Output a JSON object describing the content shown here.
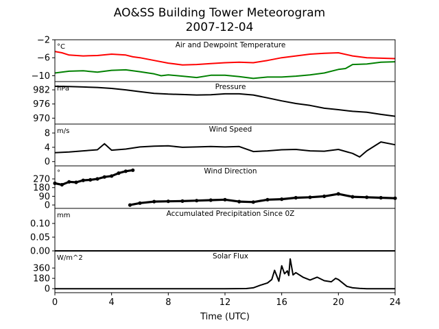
{
  "figure": {
    "title_line1": "AO&SS Building Tower Meteorogram",
    "title_line2": "2007-12-04"
  },
  "chart_data": [
    {
      "type": "line",
      "title": "Air and Dewpoint Temperature",
      "unit": "°C",
      "xlabel": "",
      "xlim": [
        0,
        24
      ],
      "ylim": [
        -11.3,
        -2
      ],
      "yticks": [
        -2,
        -6,
        -10
      ],
      "ytick_labels": [
        "−2",
        "−6",
        "−10"
      ],
      "series": [
        {
          "color": "#ff0000",
          "x": [
            0,
            0.5,
            1,
            2,
            3,
            4,
            5,
            5.5,
            6,
            7,
            8,
            9,
            10,
            11,
            12,
            13,
            14,
            15,
            16,
            17,
            18,
            19,
            20,
            21,
            22,
            23,
            24
          ],
          "y": [
            -4.6,
            -4.9,
            -5.4,
            -5.6,
            -5.5,
            -5.2,
            -5.4,
            -5.8,
            -6.0,
            -6.6,
            -7.2,
            -7.6,
            -7.5,
            -7.3,
            -7.1,
            -7.0,
            -7.1,
            -6.6,
            -6.0,
            -5.6,
            -5.2,
            -5.0,
            -4.9,
            -5.6,
            -6.0,
            -6.1,
            -6.2
          ]
        },
        {
          "color": "#008000",
          "x": [
            0,
            1,
            2,
            3,
            4,
            5,
            6,
            7,
            7.5,
            8,
            9,
            10,
            11,
            12,
            13,
            14,
            15,
            16,
            17,
            18,
            19,
            20,
            20.5,
            21,
            22,
            23,
            24
          ],
          "y": [
            -9.4,
            -9.0,
            -8.9,
            -9.2,
            -8.8,
            -8.7,
            -9.1,
            -9.6,
            -10.0,
            -9.8,
            -10.1,
            -10.4,
            -9.9,
            -9.9,
            -10.2,
            -10.6,
            -10.3,
            -10.3,
            -10.1,
            -9.8,
            -9.4,
            -8.6,
            -8.4,
            -7.5,
            -7.4,
            -7.0,
            -6.9
          ]
        }
      ]
    },
    {
      "type": "line",
      "title": "Pressure",
      "unit": "hPa",
      "xlim": [
        0,
        24
      ],
      "ylim": [
        967.5,
        985.5
      ],
      "yticks": [
        982,
        976,
        970
      ],
      "ytick_labels": [
        "982",
        "976",
        "970"
      ],
      "series": [
        {
          "color": "#000000",
          "x": [
            0,
            1,
            2,
            3,
            4,
            5,
            6,
            7,
            8,
            9,
            10,
            11,
            12,
            13,
            14,
            15,
            16,
            17,
            18,
            19,
            20,
            21,
            22,
            23,
            24
          ],
          "y": [
            983.5,
            983.4,
            983.2,
            983.0,
            982.6,
            982.0,
            981.2,
            980.5,
            980.2,
            980.0,
            979.8,
            979.9,
            980.3,
            980.3,
            979.8,
            978.6,
            977.3,
            976.2,
            975.4,
            974.2,
            973.6,
            972.9,
            972.5,
            971.6,
            970.8
          ]
        }
      ]
    },
    {
      "type": "line",
      "title": "Wind Speed",
      "unit": "m/s",
      "xlim": [
        0,
        24
      ],
      "ylim": [
        -1.2,
        10.5
      ],
      "yticks": [
        8,
        4,
        0
      ],
      "ytick_labels": [
        "8",
        "4",
        "0"
      ],
      "series": [
        {
          "color": "#000000",
          "x": [
            0,
            1,
            2,
            3,
            3.5,
            4,
            5,
            6,
            7,
            8,
            9,
            10,
            11,
            12,
            13,
            14,
            15,
            16,
            17,
            18,
            19,
            20,
            21,
            21.5,
            22,
            23,
            24
          ],
          "y": [
            2.5,
            2.7,
            3.0,
            3.3,
            5.0,
            3.2,
            3.5,
            4.1,
            4.3,
            4.4,
            4.0,
            4.1,
            4.2,
            4.1,
            4.2,
            2.8,
            3.0,
            3.3,
            3.4,
            3.0,
            2.9,
            3.4,
            2.3,
            1.3,
            3.0,
            5.5,
            4.7
          ]
        }
      ]
    },
    {
      "type": "scatter",
      "title": "Wind Direction",
      "unit": "°",
      "xlim": [
        0,
        24
      ],
      "ylim": [
        -35,
        405
      ],
      "yticks": [
        270,
        180,
        90,
        0
      ],
      "ytick_labels": [
        "270",
        "180",
        "90",
        "0"
      ],
      "series": [
        {
          "color": "#000000",
          "x": [
            0,
            0.5,
            1,
            1.5,
            2,
            2.5,
            3,
            3.5,
            4,
            4.5,
            5,
            5.5,
            5.3,
            6,
            7,
            8,
            9,
            10,
            11,
            12,
            13,
            14,
            15,
            16,
            17,
            18,
            19,
            20,
            21,
            22,
            23,
            24
          ],
          "y": [
            225,
            210,
            240,
            235,
            255,
            260,
            270,
            290,
            300,
            330,
            350,
            360,
            0,
            20,
            35,
            38,
            40,
            45,
            50,
            55,
            35,
            30,
            55,
            60,
            75,
            80,
            90,
            115,
            85,
            80,
            75,
            70
          ]
        }
      ]
    },
    {
      "type": "line",
      "title": "Accumulated Precipitation Since 0Z",
      "unit": "mm",
      "xlim": [
        0,
        24
      ],
      "ylim": [
        0,
        0.155
      ],
      "yticks": [
        0.1,
        0.05,
        0
      ],
      "ytick_labels": [
        "0.10",
        "0.05",
        "0.00"
      ],
      "series": [
        {
          "color": "#000000",
          "x": [
            0,
            24
          ],
          "y": [
            0,
            0
          ]
        }
      ]
    },
    {
      "type": "line",
      "title": "Solar Flux",
      "unit": "W/m^2",
      "xlim": [
        0,
        24
      ],
      "ylim": [
        -70,
        660
      ],
      "yticks": [
        360,
        180,
        0
      ],
      "ytick_labels": [
        "360",
        "180",
        "0"
      ],
      "xticks": [
        0,
        4,
        8,
        12,
        16,
        20,
        24
      ],
      "xtick_labels": [
        "0",
        "4",
        "8",
        "12",
        "16",
        "20",
        "24"
      ],
      "xlabel": "Time (UTC)",
      "series": [
        {
          "color": "#000000",
          "x": [
            0,
            4,
            8,
            12,
            13.5,
            14,
            14.5,
            15,
            15.3,
            15.5,
            15.8,
            16,
            16.2,
            16.4,
            16.5,
            16.6,
            16.8,
            17,
            17.5,
            18,
            18.5,
            19,
            19.5,
            19.8,
            20,
            20.3,
            20.6,
            21,
            21.5,
            22,
            23,
            24
          ],
          "y": [
            0,
            0,
            0,
            0,
            2,
            15,
            60,
            100,
            160,
            320,
            130,
            400,
            260,
            310,
            230,
            520,
            240,
            280,
            200,
            150,
            200,
            140,
            120,
            180,
            160,
            100,
            40,
            15,
            5,
            0,
            0,
            0
          ]
        }
      ]
    }
  ]
}
